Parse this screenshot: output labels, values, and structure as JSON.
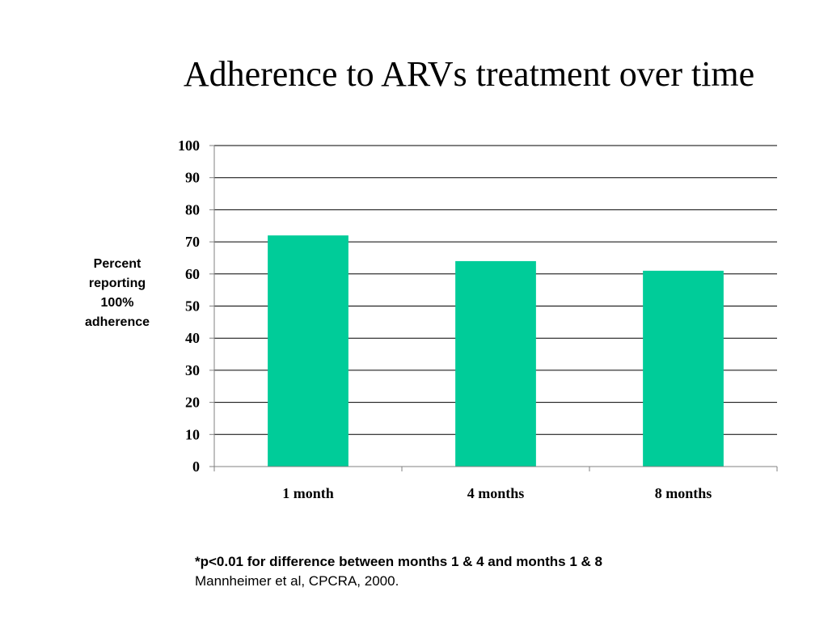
{
  "slide": {
    "title": "Adherence to ARVs treatment over time",
    "footnote": "*p<0.01 for difference between months 1 & 4 and months 1 & 8",
    "citation": "Mannheimer et al, CPCRA, 2000."
  },
  "chart_data": {
    "type": "bar",
    "categories": [
      "1 month",
      "4 months",
      "8 months"
    ],
    "values": [
      72,
      64,
      61
    ],
    "ylabel": "Percent reporting 100% adherence",
    "ylim": [
      0,
      100
    ],
    "yticks": [
      0,
      10,
      20,
      30,
      40,
      50,
      60,
      70,
      80,
      90,
      100
    ],
    "grid": true,
    "legend": "none",
    "bar_color": "#00cc99"
  }
}
